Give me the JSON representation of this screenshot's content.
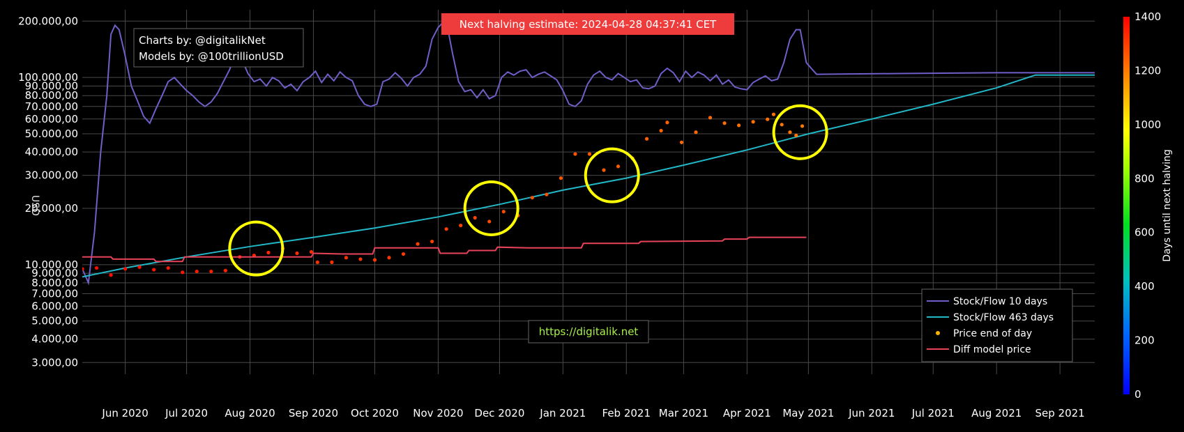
{
  "chart_data": {
    "type": "line",
    "ylabel": "USD",
    "yscale": "log",
    "ylim": [
      2600,
      230000
    ],
    "xlim": [
      "2020-05-11",
      "2021-09-18"
    ],
    "grid": true,
    "y_ticks": [
      {
        "v": 200000,
        "label": "200.000,00"
      },
      {
        "v": 100000,
        "label": "100.000,00"
      },
      {
        "v": 90000,
        "label": "90.000,00"
      },
      {
        "v": 80000,
        "label": "80.000,00"
      },
      {
        "v": 70000,
        "label": "70.000,00"
      },
      {
        "v": 60000,
        "label": "60.000,00"
      },
      {
        "v": 50000,
        "label": "50.000,00"
      },
      {
        "v": 40000,
        "label": "40.000,00"
      },
      {
        "v": 30000,
        "label": "30.000,00"
      },
      {
        "v": 20000,
        "label": "20.000,00"
      },
      {
        "v": 10000,
        "label": "10.000,00"
      },
      {
        "v": 9000,
        "label": "9.000,00"
      },
      {
        "v": 8000,
        "label": "8.000,00"
      },
      {
        "v": 7000,
        "label": "7.000,00"
      },
      {
        "v": 6000,
        "label": "6.000,00"
      },
      {
        "v": 5000,
        "label": "5.000,00"
      },
      {
        "v": 4000,
        "label": "4.000,00"
      },
      {
        "v": 3000,
        "label": "3.000,00"
      }
    ],
    "x_ticks": [
      {
        "date": "2020-06-01",
        "label": "Jun 2020"
      },
      {
        "date": "2020-07-01",
        "label": "Jul 2020"
      },
      {
        "date": "2020-08-01",
        "label": "Aug 2020"
      },
      {
        "date": "2020-09-01",
        "label": "Sep 2020"
      },
      {
        "date": "2020-10-01",
        "label": "Oct 2020"
      },
      {
        "date": "2020-11-01",
        "label": "Nov 2020"
      },
      {
        "date": "2020-12-01",
        "label": "Dec 2020"
      },
      {
        "date": "2021-01-01",
        "label": "Jan 2021"
      },
      {
        "date": "2021-02-01",
        "label": "Feb 2021"
      },
      {
        "date": "2021-03-01",
        "label": "Mar 2021"
      },
      {
        "date": "2021-04-01",
        "label": "Apr 2021"
      },
      {
        "date": "2021-05-01",
        "label": "May 2021"
      },
      {
        "date": "2021-06-01",
        "label": "Jun 2021"
      },
      {
        "date": "2021-07-01",
        "label": "Jul 2021"
      },
      {
        "date": "2021-08-01",
        "label": "Aug 2021"
      },
      {
        "date": "2021-09-01",
        "label": "Sep 2021"
      }
    ],
    "series": [
      {
        "name": "Stock/Flow 10 days",
        "color": "#6f5fc8",
        "kind": "line",
        "points": [
          [
            "2020-05-11",
            9500
          ],
          [
            "2020-05-14",
            8000
          ],
          [
            "2020-05-17",
            15000
          ],
          [
            "2020-05-20",
            40000
          ],
          [
            "2020-05-23",
            80000
          ],
          [
            "2020-05-25",
            170000
          ],
          [
            "2020-05-27",
            190000
          ],
          [
            "2020-05-29",
            180000
          ],
          [
            "2020-06-01",
            130000
          ],
          [
            "2020-06-04",
            90000
          ],
          [
            "2020-06-07",
            75000
          ],
          [
            "2020-06-10",
            62000
          ],
          [
            "2020-06-13",
            57000
          ],
          [
            "2020-06-16",
            68000
          ],
          [
            "2020-06-19",
            80000
          ],
          [
            "2020-06-22",
            95000
          ],
          [
            "2020-06-25",
            100000
          ],
          [
            "2020-06-28",
            92000
          ],
          [
            "2020-07-01",
            85000
          ],
          [
            "2020-07-04",
            80000
          ],
          [
            "2020-07-07",
            74000
          ],
          [
            "2020-07-10",
            70000
          ],
          [
            "2020-07-13",
            74000
          ],
          [
            "2020-07-16",
            82000
          ],
          [
            "2020-07-19",
            95000
          ],
          [
            "2020-07-22",
            110000
          ],
          [
            "2020-07-25",
            135000
          ],
          [
            "2020-07-28",
            125000
          ],
          [
            "2020-07-31",
            105000
          ],
          [
            "2020-08-03",
            95000
          ],
          [
            "2020-08-06",
            98000
          ],
          [
            "2020-08-09",
            90000
          ],
          [
            "2020-08-12",
            100000
          ],
          [
            "2020-08-15",
            96000
          ],
          [
            "2020-08-18",
            88000
          ],
          [
            "2020-08-21",
            92000
          ],
          [
            "2020-08-24",
            85000
          ],
          [
            "2020-08-27",
            95000
          ],
          [
            "2020-08-30",
            100000
          ],
          [
            "2020-09-02",
            108000
          ],
          [
            "2020-09-05",
            94000
          ],
          [
            "2020-09-08",
            104000
          ],
          [
            "2020-09-11",
            96000
          ],
          [
            "2020-09-14",
            107000
          ],
          [
            "2020-09-17",
            100000
          ],
          [
            "2020-09-20",
            96000
          ],
          [
            "2020-09-23",
            80000
          ],
          [
            "2020-09-26",
            72000
          ],
          [
            "2020-09-29",
            70000
          ],
          [
            "2020-10-02",
            72000
          ],
          [
            "2020-10-05",
            95000
          ],
          [
            "2020-10-08",
            98000
          ],
          [
            "2020-10-11",
            106000
          ],
          [
            "2020-10-14",
            99000
          ],
          [
            "2020-10-17",
            90000
          ],
          [
            "2020-10-20",
            100000
          ],
          [
            "2020-10-23",
            104000
          ],
          [
            "2020-10-26",
            115000
          ],
          [
            "2020-10-29",
            160000
          ],
          [
            "2020-11-01",
            185000
          ],
          [
            "2020-11-03",
            195000
          ],
          [
            "2020-11-06",
            175000
          ],
          [
            "2020-11-08",
            135000
          ],
          [
            "2020-11-11",
            95000
          ],
          [
            "2020-11-14",
            84000
          ],
          [
            "2020-11-17",
            86000
          ],
          [
            "2020-11-20",
            78000
          ],
          [
            "2020-11-23",
            86000
          ],
          [
            "2020-11-26",
            77000
          ],
          [
            "2020-11-29",
            80000
          ],
          [
            "2020-12-02",
            100000
          ],
          [
            "2020-12-05",
            107000
          ],
          [
            "2020-12-08",
            103000
          ],
          [
            "2020-12-11",
            108000
          ],
          [
            "2020-12-14",
            110000
          ],
          [
            "2020-12-17",
            100000
          ],
          [
            "2020-12-20",
            104000
          ],
          [
            "2020-12-23",
            107000
          ],
          [
            "2020-12-26",
            102000
          ],
          [
            "2020-12-29",
            97000
          ],
          [
            "2021-01-01",
            85000
          ],
          [
            "2021-01-04",
            72000
          ],
          [
            "2021-01-07",
            70000
          ],
          [
            "2021-01-10",
            75000
          ],
          [
            "2021-01-13",
            92000
          ],
          [
            "2021-01-16",
            103000
          ],
          [
            "2021-01-19",
            108000
          ],
          [
            "2021-01-22",
            100000
          ],
          [
            "2021-01-25",
            97000
          ],
          [
            "2021-01-28",
            105000
          ],
          [
            "2021-01-31",
            100000
          ],
          [
            "2021-02-03",
            95000
          ],
          [
            "2021-02-06",
            97000
          ],
          [
            "2021-02-09",
            88000
          ],
          [
            "2021-02-12",
            87000
          ],
          [
            "2021-02-15",
            90000
          ],
          [
            "2021-02-18",
            105000
          ],
          [
            "2021-02-21",
            112000
          ],
          [
            "2021-02-24",
            106000
          ],
          [
            "2021-02-27",
            95000
          ],
          [
            "2021-03-02",
            108000
          ],
          [
            "2021-03-05",
            100000
          ],
          [
            "2021-03-08",
            107000
          ],
          [
            "2021-03-11",
            103000
          ],
          [
            "2021-03-14",
            96000
          ],
          [
            "2021-03-17",
            103000
          ],
          [
            "2021-03-20",
            92000
          ],
          [
            "2021-03-23",
            97000
          ],
          [
            "2021-03-26",
            89000
          ],
          [
            "2021-03-29",
            87000
          ],
          [
            "2021-04-01",
            86000
          ],
          [
            "2021-04-04",
            94000
          ],
          [
            "2021-04-07",
            98000
          ],
          [
            "2021-04-10",
            102000
          ],
          [
            "2021-04-13",
            96000
          ],
          [
            "2021-04-16",
            98000
          ],
          [
            "2021-04-19",
            120000
          ],
          [
            "2021-04-22",
            160000
          ],
          [
            "2021-04-25",
            180000
          ],
          [
            "2021-04-27",
            180000
          ],
          [
            "2021-04-30",
            120000
          ],
          [
            "2021-05-03",
            110000
          ],
          [
            "2021-05-05",
            104000
          ],
          [
            "2021-06-15",
            105000
          ],
          [
            "2021-08-01",
            106000
          ],
          [
            "2021-09-18",
            106000
          ]
        ]
      },
      {
        "name": "Stock/Flow 463 days",
        "color": "#21b8c8",
        "kind": "line",
        "points": [
          [
            "2020-05-11",
            8600
          ],
          [
            "2020-06-01",
            9600
          ],
          [
            "2020-07-01",
            11000
          ],
          [
            "2020-08-01",
            12500
          ],
          [
            "2020-09-01",
            14000
          ],
          [
            "2020-10-01",
            15700
          ],
          [
            "2020-11-01",
            18000
          ],
          [
            "2020-12-01",
            21000
          ],
          [
            "2021-01-01",
            25000
          ],
          [
            "2021-02-01",
            29000
          ],
          [
            "2021-03-01",
            34000
          ],
          [
            "2021-04-01",
            41000
          ],
          [
            "2021-05-01",
            50000
          ],
          [
            "2021-06-01",
            60000
          ],
          [
            "2021-07-01",
            72000
          ],
          [
            "2021-08-01",
            88000
          ],
          [
            "2021-08-20",
            103000
          ],
          [
            "2021-09-18",
            103000
          ]
        ]
      },
      {
        "name": "Price end of day",
        "kind": "scatter",
        "colorscale_var": "days_until_next_halving",
        "points": [
          [
            "2020-05-11",
            9500
          ],
          [
            "2020-05-18",
            9600
          ],
          [
            "2020-05-25",
            8800
          ],
          [
            "2020-06-01",
            9500
          ],
          [
            "2020-06-08",
            9700
          ],
          [
            "2020-06-15",
            9400
          ],
          [
            "2020-06-22",
            9600
          ],
          [
            "2020-06-29",
            9100
          ],
          [
            "2020-07-06",
            9200
          ],
          [
            "2020-07-13",
            9200
          ],
          [
            "2020-07-20",
            9300
          ],
          [
            "2020-07-27",
            11000
          ],
          [
            "2020-08-03",
            11200
          ],
          [
            "2020-08-10",
            11600
          ],
          [
            "2020-08-17",
            12200
          ],
          [
            "2020-08-24",
            11500
          ],
          [
            "2020-08-31",
            11700
          ],
          [
            "2020-09-03",
            10300
          ],
          [
            "2020-09-10",
            10300
          ],
          [
            "2020-09-17",
            10900
          ],
          [
            "2020-09-24",
            10700
          ],
          [
            "2020-10-01",
            10600
          ],
          [
            "2020-10-08",
            10900
          ],
          [
            "2020-10-15",
            11400
          ],
          [
            "2020-10-22",
            12900
          ],
          [
            "2020-10-29",
            13300
          ],
          [
            "2020-11-05",
            15500
          ],
          [
            "2020-11-12",
            16200
          ],
          [
            "2020-11-19",
            17800
          ],
          [
            "2020-11-26",
            17000
          ],
          [
            "2020-12-03",
            19200
          ],
          [
            "2020-12-10",
            18300
          ],
          [
            "2020-12-17",
            22800
          ],
          [
            "2020-12-24",
            23700
          ],
          [
            "2020-12-31",
            29000
          ],
          [
            "2021-01-07",
            39000
          ],
          [
            "2021-01-14",
            39000
          ],
          [
            "2021-01-21",
            32000
          ],
          [
            "2021-01-28",
            33500
          ],
          [
            "2021-02-04",
            37000
          ],
          [
            "2021-02-11",
            47000
          ],
          [
            "2021-02-18",
            52000
          ],
          [
            "2021-02-21",
            57500
          ],
          [
            "2021-02-28",
            45000
          ],
          [
            "2021-03-07",
            51000
          ],
          [
            "2021-03-14",
            61000
          ],
          [
            "2021-03-21",
            57000
          ],
          [
            "2021-03-28",
            55500
          ],
          [
            "2021-04-04",
            58000
          ],
          [
            "2021-04-11",
            59800
          ],
          [
            "2021-04-14",
            63500
          ],
          [
            "2021-04-18",
            56000
          ],
          [
            "2021-04-22",
            51000
          ],
          [
            "2021-04-25",
            49000
          ],
          [
            "2021-04-28",
            55000
          ]
        ]
      },
      {
        "name": "Diff model price",
        "color": "#e8435a",
        "kind": "line",
        "points": [
          [
            "2020-05-11",
            11000
          ],
          [
            "2020-05-25",
            11000
          ],
          [
            "2020-05-26",
            10700
          ],
          [
            "2020-06-15",
            10700
          ],
          [
            "2020-06-16",
            10400
          ],
          [
            "2020-06-29",
            10400
          ],
          [
            "2020-06-30",
            11000
          ],
          [
            "2020-08-31",
            11000
          ],
          [
            "2020-09-01",
            11500
          ],
          [
            "2020-09-15",
            11400
          ],
          [
            "2020-09-30",
            11400
          ],
          [
            "2020-10-01",
            12300
          ],
          [
            "2020-11-01",
            12300
          ],
          [
            "2020-11-02",
            11500
          ],
          [
            "2020-11-15",
            11500
          ],
          [
            "2020-11-16",
            11900
          ],
          [
            "2020-11-29",
            11900
          ],
          [
            "2020-11-30",
            12400
          ],
          [
            "2020-12-15",
            12300
          ],
          [
            "2021-01-10",
            12300
          ],
          [
            "2021-01-11",
            13000
          ],
          [
            "2021-02-07",
            13000
          ],
          [
            "2021-02-08",
            13300
          ],
          [
            "2021-03-20",
            13400
          ],
          [
            "2021-03-21",
            13700
          ],
          [
            "2021-04-01",
            13700
          ],
          [
            "2021-04-02",
            14000
          ],
          [
            "2021-04-30",
            14000
          ]
        ]
      }
    ],
    "highlights": [
      {
        "date": "2020-08-04",
        "value": 12200
      },
      {
        "date": "2020-11-27",
        "value": 20000
      },
      {
        "date": "2021-01-25",
        "value": 30000
      },
      {
        "date": "2021-04-27",
        "value": 51000
      }
    ],
    "colorbar": {
      "title": "Days until next halving",
      "min": 0,
      "max": 1400,
      "ticks": [
        "0",
        "200",
        "400",
        "600",
        "800",
        "1000",
        "1200",
        "1400"
      ]
    },
    "legend_position": "bottom-right"
  },
  "header": {
    "halving_banner": "Next halving estimate: 2024-04-28 04:37:41 CET",
    "banner_color": "#ee3b3b"
  },
  "credits": {
    "line1": "Charts by: @digitalikNet",
    "line2": "Models by: @100trillionUSD"
  },
  "watermark": {
    "url": "https://digitalik.net",
    "color": "#a6f046"
  }
}
